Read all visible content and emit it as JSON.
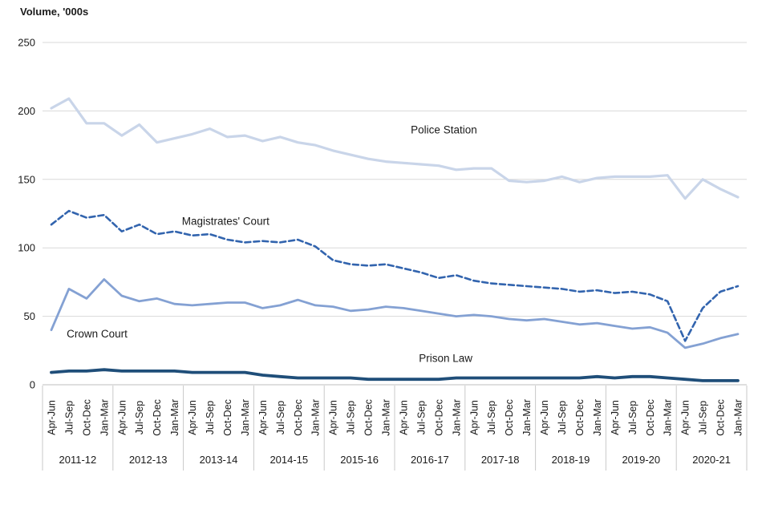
{
  "chart_data": {
    "type": "line",
    "title": "Volume, '000s",
    "y_axis": {
      "min": 0,
      "max": 250,
      "tick_step": 50,
      "ticks": [
        250,
        200,
        150,
        100,
        50,
        0
      ]
    },
    "x_axis": {
      "years": [
        "2011-12",
        "2012-13",
        "2013-14",
        "2014-15",
        "2015-16",
        "2016-17",
        "2017-18",
        "2018-19",
        "2019-20",
        "2020-21"
      ],
      "quarters": [
        "Apr-Jun",
        "Jul-Sep",
        "Oct-Dec",
        "Jan-Mar"
      ]
    },
    "grid": true,
    "legend_position": "inline-labels",
    "series": [
      {
        "name": "Police Station",
        "color": "#C9D5E9",
        "style": "solid",
        "width": 3.2,
        "values": [
          202,
          209,
          191,
          191,
          182,
          190,
          177,
          180,
          183,
          187,
          181,
          182,
          178,
          181,
          177,
          175,
          171,
          168,
          165,
          163,
          162,
          161,
          160,
          157,
          158,
          158,
          149,
          148,
          149,
          152,
          148,
          151,
          152,
          152,
          152,
          153,
          136,
          150,
          143,
          137
        ]
      },
      {
        "name": "Magistrates' Court",
        "color": "#3264AE",
        "style": "dashed",
        "width": 2.6,
        "values": [
          117,
          127,
          122,
          124,
          112,
          117,
          110,
          112,
          109,
          110,
          106,
          104,
          105,
          104,
          106,
          101,
          91,
          88,
          87,
          88,
          85,
          82,
          78,
          80,
          76,
          74,
          73,
          72,
          71,
          70,
          68,
          69,
          67,
          68,
          66,
          61,
          32,
          56,
          68,
          72
        ]
      },
      {
        "name": "Crown Court",
        "color": "#84A1D3",
        "style": "solid",
        "width": 2.8,
        "values": [
          40,
          70,
          63,
          77,
          65,
          61,
          63,
          59,
          58,
          59,
          60,
          60,
          56,
          58,
          62,
          58,
          57,
          54,
          55,
          57,
          56,
          54,
          52,
          50,
          51,
          50,
          48,
          47,
          48,
          46,
          44,
          45,
          43,
          41,
          42,
          38,
          27,
          30,
          34,
          37
        ]
      },
      {
        "name": "Prison Law",
        "color": "#1F4E79",
        "style": "solid",
        "width": 3.8,
        "values": [
          9,
          10,
          10,
          11,
          10,
          10,
          10,
          10,
          9,
          9,
          9,
          9,
          7,
          6,
          5,
          5,
          5,
          5,
          4,
          4,
          4,
          4,
          4,
          5,
          5,
          5,
          5,
          5,
          5,
          5,
          5,
          6,
          5,
          6,
          6,
          5,
          4,
          3,
          3,
          3
        ]
      }
    ],
    "series_labels": [
      {
        "text": "Police Station",
        "x_index": 22.3,
        "y_value": 186
      },
      {
        "text": "Magistrates' Court",
        "x_index": 9.9,
        "y_value": 119
      },
      {
        "text": "Crown Court",
        "x_index": 2.6,
        "y_value": 37
      },
      {
        "text": "Prison Law",
        "x_index": 22.4,
        "y_value": 19
      }
    ],
    "colors": {
      "gridline": "#D9D9D9",
      "axis_line": "#BFBFBF",
      "category_separator": "#C9C9C9",
      "text": "#1a1a1a"
    }
  }
}
